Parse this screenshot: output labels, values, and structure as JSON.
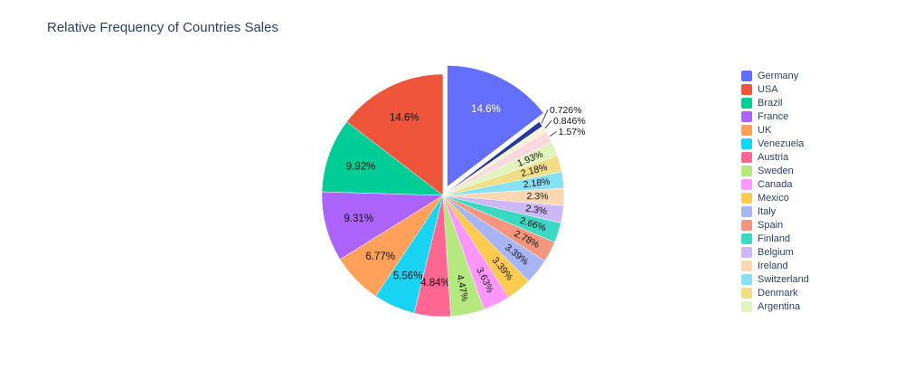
{
  "chart_data": {
    "type": "pie",
    "title": "Relative Frequency of Countries Sales",
    "legend_position": "right",
    "background": "#ffffff",
    "slices": [
      {
        "label": "Germany",
        "pct": 14.6,
        "text": "14.6%",
        "color": "#636EFA",
        "label_mode": "inside",
        "text_color": "#FFFFFF",
        "pull": 0.08
      },
      {
        "label": "USA",
        "pct": 14.6,
        "text": "14.6%",
        "color": "#EF553B",
        "label_mode": "inside"
      },
      {
        "label": "Brazil",
        "pct": 9.92,
        "text": "9.92%",
        "color": "#00CC96",
        "label_mode": "inside"
      },
      {
        "label": "France",
        "pct": 9.31,
        "text": "9.31%",
        "color": "#AB63FA",
        "label_mode": "inside"
      },
      {
        "label": "UK",
        "pct": 6.77,
        "text": "6.77%",
        "color": "#FFA15A",
        "label_mode": "inside"
      },
      {
        "label": "Venezuela",
        "pct": 5.56,
        "text": "5.56%",
        "color": "#19D3F3",
        "label_mode": "inside"
      },
      {
        "label": "Austria",
        "pct": 4.84,
        "text": "4.84%",
        "color": "#FF6692",
        "label_mode": "inside"
      },
      {
        "label": "Sweden",
        "pct": 4.47,
        "text": "4.47%",
        "color": "#B6E880",
        "label_mode": "inside-rotated"
      },
      {
        "label": "Canada",
        "pct": 3.63,
        "text": "3.63%",
        "color": "#FF97FF",
        "label_mode": "inside-rotated"
      },
      {
        "label": "Mexico",
        "pct": 3.39,
        "text": "3.39%",
        "color": "#FECB52",
        "label_mode": "inside-rotated"
      },
      {
        "label": "Italy",
        "pct": 3.39,
        "text": "3.39%",
        "color": "#A8B4F4",
        "label_mode": "inside-rotated"
      },
      {
        "label": "Spain",
        "pct": 2.78,
        "text": "2.78%",
        "color": "#F4967F",
        "label_mode": "inside-rotated"
      },
      {
        "label": "Finland",
        "pct": 2.66,
        "text": "2.66%",
        "color": "#3BD8C3",
        "label_mode": "inside-rotated"
      },
      {
        "label": "Belgium",
        "pct": 2.3,
        "text": "2.3%",
        "color": "#CCB8F4",
        "label_mode": "inside-rotated"
      },
      {
        "label": "Ireland",
        "pct": 2.3,
        "text": "2.3%",
        "color": "#FBD8B2",
        "label_mode": "inside-rotated"
      },
      {
        "label": "Switzerland",
        "pct": 2.18,
        "text": "2.18%",
        "color": "#87E1F1",
        "label_mode": "inside-rotated"
      },
      {
        "label": "Denmark",
        "pct": 2.18,
        "text": "2.18%",
        "color": "#F2DD87",
        "label_mode": "inside-rotated"
      },
      {
        "label": "Argentina",
        "pct": 1.93,
        "text": "1.93%",
        "color": "#E1F4BE",
        "label_mode": "inside-rotated"
      },
      {
        "label": "",
        "pct": 1.57,
        "text": "1.57%",
        "color": "#F9D9DF",
        "label_mode": "outside"
      },
      {
        "label": "",
        "pct": 0.846,
        "text": "0.846%",
        "color": "#FBF3D0",
        "label_mode": "outside"
      },
      {
        "label": "",
        "pct": 0.726,
        "text": "0.726%",
        "color": "#24399B",
        "label_mode": "outside"
      }
    ]
  }
}
